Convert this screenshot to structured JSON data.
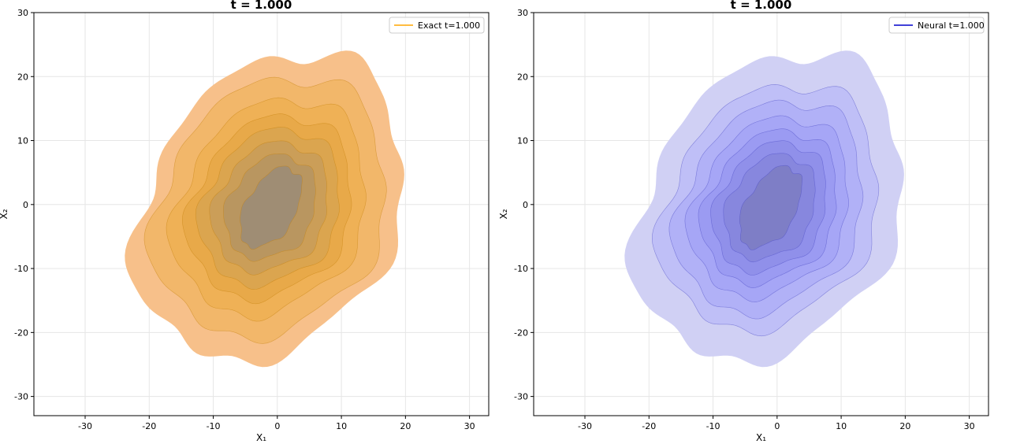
{
  "chart_data": [
    {
      "type": "contour",
      "title": "t = 1.000",
      "xlabel": "X₁",
      "ylabel": "X₂",
      "xlim": [
        -38,
        33
      ],
      "ylim": [
        -33,
        30
      ],
      "xticks": [
        -30,
        -20,
        -10,
        0,
        10,
        20,
        30
      ],
      "yticks": [
        -30,
        -20,
        -10,
        0,
        10,
        20,
        30
      ],
      "grid": true,
      "legend": {
        "position": "top-right",
        "entries": [
          {
            "label": "Exact t=1.000",
            "color": "#ffa500"
          }
        ]
      },
      "center": [
        -1,
        -0.5
      ],
      "rotation_deg": -30,
      "levels": [
        {
          "rx": 19.2,
          "ry": 25.5,
          "color": "#f7c08a"
        },
        {
          "rx": 17.0,
          "ry": 21.3,
          "color": "#f2b76a"
        },
        {
          "rx": 14.0,
          "ry": 17.8,
          "color": "#efb156"
        },
        {
          "rx": 12.0,
          "ry": 15.0,
          "color": "#e8a949"
        },
        {
          "rx": 10.3,
          "ry": 12.8,
          "color": "#dba54f"
        },
        {
          "rx": 8.5,
          "ry": 10.6,
          "color": "#cb9e58"
        },
        {
          "rx": 6.6,
          "ry": 8.6,
          "color": "#b99660"
        },
        {
          "rx": 3.9,
          "ry": 6.9,
          "color": "#9f8d74"
        }
      ],
      "line_color": "#c4820d"
    },
    {
      "type": "contour",
      "title": "t = 1.000",
      "xlabel": "X₁",
      "ylabel": "X₂",
      "xlim": [
        -38,
        33
      ],
      "ylim": [
        -33,
        30
      ],
      "xticks": [
        -30,
        -20,
        -10,
        0,
        10,
        20,
        30
      ],
      "yticks": [
        -30,
        -20,
        -10,
        0,
        10,
        20,
        30
      ],
      "grid": true,
      "legend": {
        "position": "top-right",
        "entries": [
          {
            "label": "Neural t=1.000",
            "color": "#0000cc"
          }
        ]
      },
      "center": [
        -1,
        -0.5
      ],
      "rotation_deg": -30,
      "levels": [
        {
          "rx": 19.2,
          "ry": 25.5,
          "color": "#d0d0f4"
        },
        {
          "rx": 15.8,
          "ry": 20.2,
          "color": "#bfbff7"
        },
        {
          "rx": 13.5,
          "ry": 17.5,
          "color": "#b1b1f7"
        },
        {
          "rx": 11.5,
          "ry": 14.8,
          "color": "#a6a6f6"
        },
        {
          "rx": 9.8,
          "ry": 12.6,
          "color": "#9b9bf2"
        },
        {
          "rx": 8.2,
          "ry": 10.7,
          "color": "#9090ea"
        },
        {
          "rx": 6.5,
          "ry": 8.7,
          "color": "#8787de"
        },
        {
          "rx": 3.9,
          "ry": 7.0,
          "color": "#7e7ec6"
        }
      ],
      "line_color": "#4b4bc4"
    }
  ]
}
